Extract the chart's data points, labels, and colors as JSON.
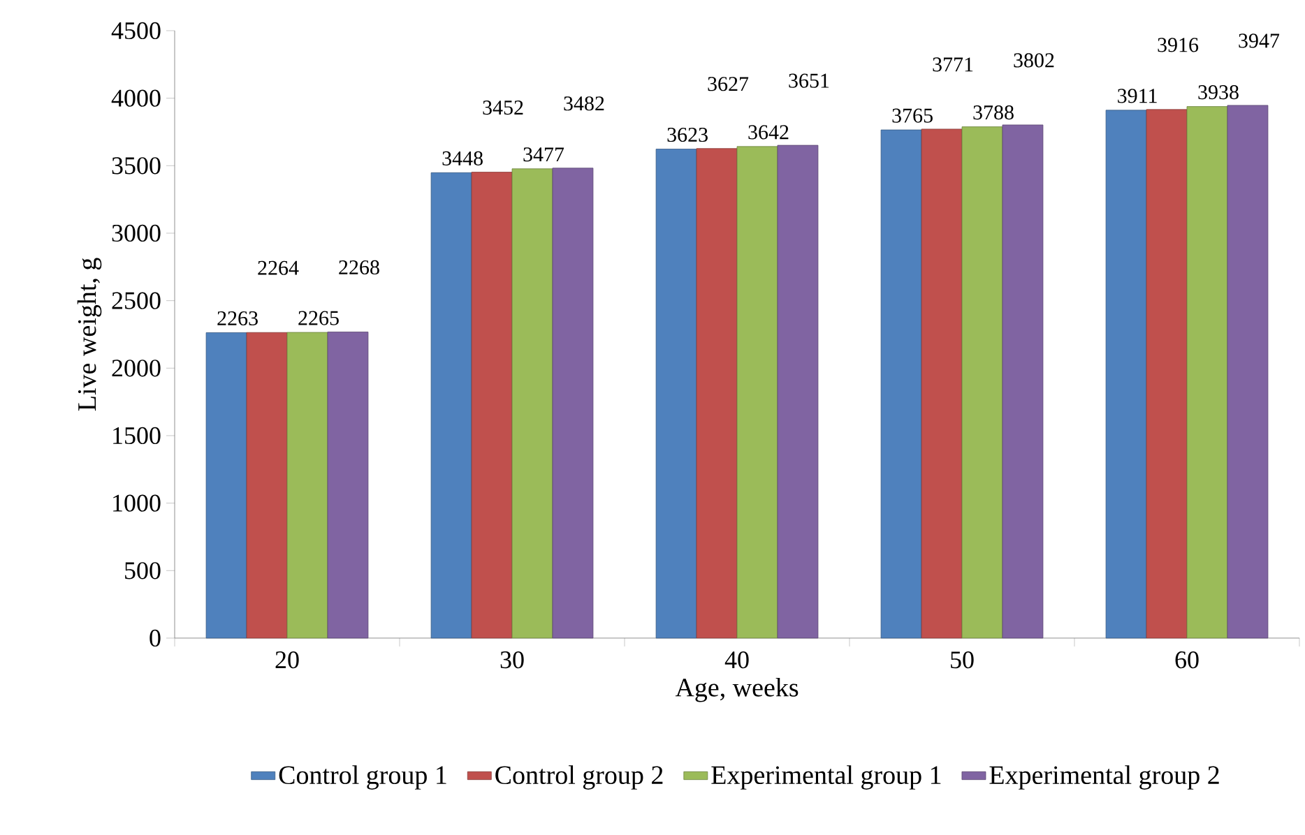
{
  "chart_data": {
    "type": "bar",
    "xlabel": "Age, weeks",
    "ylabel": "Live weight, g",
    "categories": [
      "20",
      "30",
      "40",
      "50",
      "60"
    ],
    "series": [
      {
        "name": "Control group 1",
        "color": "#4f81bd",
        "values": [
          2263,
          3448,
          3623,
          3765,
          3911
        ]
      },
      {
        "name": "Control group 2",
        "color": "#c0504d",
        "values": [
          2264,
          3452,
          3627,
          3771,
          3916
        ]
      },
      {
        "name": "Experimental group 1",
        "color": "#9bbb59",
        "values": [
          2265,
          3477,
          3642,
          3788,
          3938
        ]
      },
      {
        "name": "Experimental group 2",
        "color": "#8064a2",
        "values": [
          2268,
          3482,
          3651,
          3802,
          3947
        ]
      }
    ],
    "ylim": [
      0,
      4500
    ],
    "yticks": [
      0,
      500,
      1000,
      1500,
      2000,
      2500,
      3000,
      3500,
      4000,
      4500
    ],
    "grid": false,
    "legend": "bottom",
    "data_labels": true
  }
}
